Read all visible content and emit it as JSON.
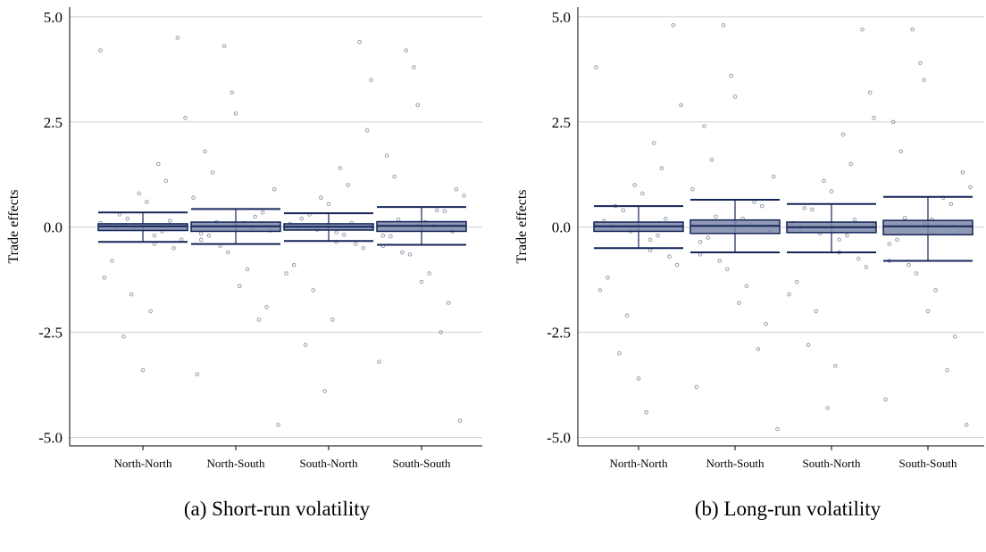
{
  "chart_data": [
    {
      "type": "box",
      "caption": "(a) Short-run volatility",
      "ylabel": "Trade effects",
      "categories": [
        "North-North",
        "North-South",
        "South-North",
        "South-South"
      ],
      "ylim": [
        -5.2,
        5.23
      ],
      "yticks": [
        {
          "value": -5,
          "label": "-5.0"
        },
        {
          "value": -2.5,
          "label": "-2.5"
        },
        {
          "value": 0,
          "label": "0.0"
        },
        {
          "value": 2.5,
          "label": "2.5"
        },
        {
          "value": 5,
          "label": "5.0"
        }
      ],
      "grid": true,
      "box_color": "#7d87a8",
      "line_color": "#14245a",
      "point_color": "#6b7390",
      "boxes": [
        {
          "whislo": -0.35,
          "q1": -0.08,
          "med": 0.02,
          "q3": 0.08,
          "whishi": 0.35
        },
        {
          "whislo": -0.4,
          "q1": -0.1,
          "med": 0.02,
          "q3": 0.12,
          "whishi": 0.43
        },
        {
          "whislo": -0.33,
          "q1": -0.07,
          "med": 0.01,
          "q3": 0.08,
          "whishi": 0.33
        },
        {
          "whislo": -0.42,
          "q1": -0.1,
          "med": 0.03,
          "q3": 0.13,
          "whishi": 0.48
        }
      ],
      "points": [
        [
          0.1,
          -0.2,
          0.3,
          -0.5,
          0.8,
          -1.2,
          1.5,
          -2.6,
          4.5,
          -3.4,
          0.05,
          -0.1,
          0.2,
          -0.3,
          0.6,
          -0.8,
          1.1,
          -1.6,
          2.6,
          -2.0,
          0.0,
          0.15,
          -0.05,
          4.2,
          -0.4
        ],
        [
          0.05,
          -0.15,
          0.25,
          -0.45,
          0.9,
          -1.4,
          1.8,
          -2.2,
          4.3,
          -4.7,
          0.1,
          -0.2,
          0.35,
          -0.6,
          0.7,
          -1.0,
          1.3,
          -1.9,
          3.2,
          -3.5,
          0.0,
          0.12,
          -0.08,
          2.7,
          -0.3
        ],
        [
          0.02,
          -0.12,
          0.2,
          -0.4,
          0.7,
          -1.1,
          1.4,
          -2.8,
          4.4,
          -3.9,
          0.08,
          -0.18,
          0.3,
          -0.5,
          0.55,
          -0.9,
          1.0,
          -1.5,
          2.3,
          -2.2,
          0.01,
          0.1,
          -0.06,
          3.5,
          -0.35
        ],
        [
          0.1,
          -0.2,
          0.4,
          -0.6,
          0.9,
          -1.3,
          1.7,
          -2.5,
          4.2,
          -4.6,
          0.12,
          -0.22,
          0.38,
          -0.65,
          0.75,
          -1.1,
          1.2,
          -1.8,
          3.8,
          -3.2,
          0.03,
          0.18,
          -0.1,
          2.9,
          -0.45
        ]
      ]
    },
    {
      "type": "box",
      "caption": "(b) Long-run volatility",
      "ylabel": "Trade effects",
      "categories": [
        "North-North",
        "North-South",
        "South-North",
        "South-South"
      ],
      "ylim": [
        -5.2,
        5.23
      ],
      "yticks": [
        {
          "value": -5,
          "label": "-5.0"
        },
        {
          "value": -2.5,
          "label": "-2.5"
        },
        {
          "value": 0,
          "label": "0.0"
        },
        {
          "value": 2.5,
          "label": "2.5"
        },
        {
          "value": 5,
          "label": "5.0"
        }
      ],
      "grid": true,
      "box_color": "#7d87a8",
      "line_color": "#14245a",
      "point_color": "#6b7390",
      "boxes": [
        {
          "whislo": -0.5,
          "q1": -0.1,
          "med": 0.02,
          "q3": 0.12,
          "whishi": 0.5
        },
        {
          "whislo": -0.6,
          "q1": -0.15,
          "med": 0.03,
          "q3": 0.17,
          "whishi": 0.65
        },
        {
          "whislo": -0.6,
          "q1": -0.13,
          "med": 0.0,
          "q3": 0.12,
          "whishi": 0.55
        },
        {
          "whislo": -0.8,
          "q1": -0.18,
          "med": 0.02,
          "q3": 0.16,
          "whishi": 0.72
        }
      ],
      "points": [
        [
          0.1,
          -0.3,
          0.5,
          -0.7,
          1.0,
          -1.5,
          2.0,
          -3.0,
          4.8,
          -3.6,
          0.15,
          -0.2,
          0.4,
          -0.9,
          0.8,
          -1.2,
          1.4,
          -2.1,
          2.9,
          -4.4,
          0.02,
          0.2,
          -0.1,
          3.8,
          -0.55
        ],
        [
          0.12,
          -0.35,
          0.6,
          -0.8,
          1.2,
          -1.8,
          2.4,
          -2.9,
          4.8,
          -4.8,
          0.2,
          -0.25,
          0.5,
          -1.0,
          0.9,
          -1.4,
          1.6,
          -2.3,
          3.6,
          -3.8,
          0.05,
          0.25,
          -0.12,
          3.1,
          -0.65
        ],
        [
          0.05,
          -0.3,
          0.45,
          -0.75,
          1.1,
          -1.6,
          2.2,
          -2.8,
          4.7,
          -4.3,
          0.1,
          -0.2,
          0.42,
          -0.95,
          0.85,
          -1.3,
          1.5,
          -2.0,
          3.2,
          -3.3,
          0.0,
          0.18,
          -0.15,
          2.6,
          -0.6
        ],
        [
          0.08,
          -0.4,
          0.7,
          -0.9,
          1.3,
          -2.0,
          2.5,
          -3.4,
          4.7,
          -4.7,
          0.18,
          -0.3,
          0.55,
          -1.1,
          0.95,
          -1.5,
          1.8,
          -2.6,
          3.9,
          -4.1,
          0.04,
          0.22,
          -0.14,
          3.5,
          -0.8
        ]
      ]
    }
  ]
}
